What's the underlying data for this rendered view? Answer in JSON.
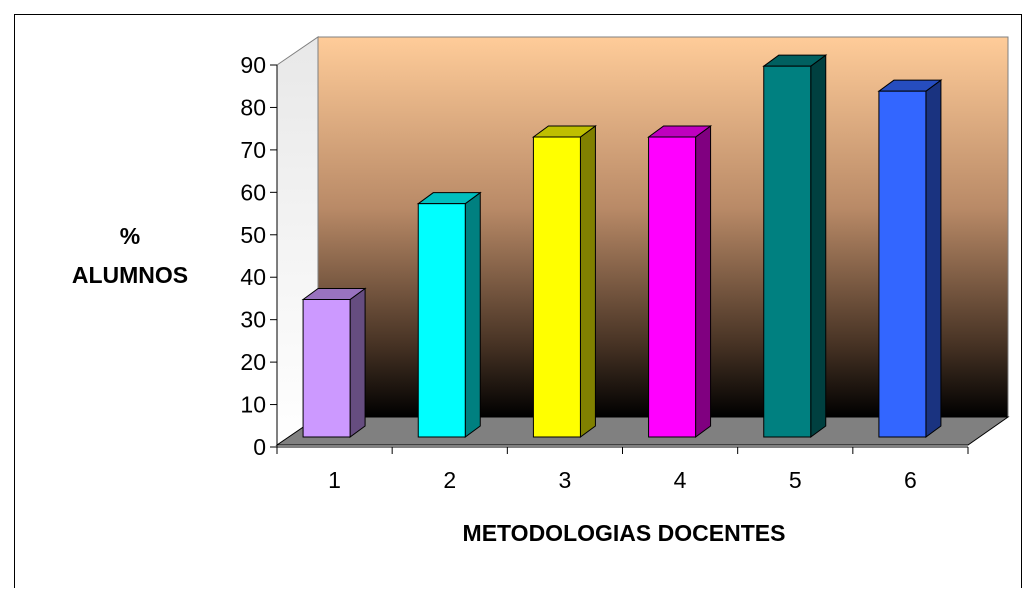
{
  "chart_data": {
    "type": "bar",
    "title": "",
    "xlabel": "METODOLOGIAS DOCENTES",
    "ylabel_lines": [
      "%",
      "ALUMNOS"
    ],
    "categories": [
      "1",
      "2",
      "3",
      "4",
      "5",
      "6"
    ],
    "values": [
      33,
      56,
      72,
      72,
      89,
      83
    ],
    "ylim": [
      0,
      90
    ],
    "yticks": [
      0,
      10,
      20,
      30,
      40,
      50,
      60,
      70,
      80,
      90
    ],
    "colors": [
      "#CC99FF",
      "#00FFFF",
      "#FFFF00",
      "#FF00FF",
      "#008080",
      "#3366FF"
    ],
    "grid": false,
    "legend": "none",
    "style": "3d"
  }
}
